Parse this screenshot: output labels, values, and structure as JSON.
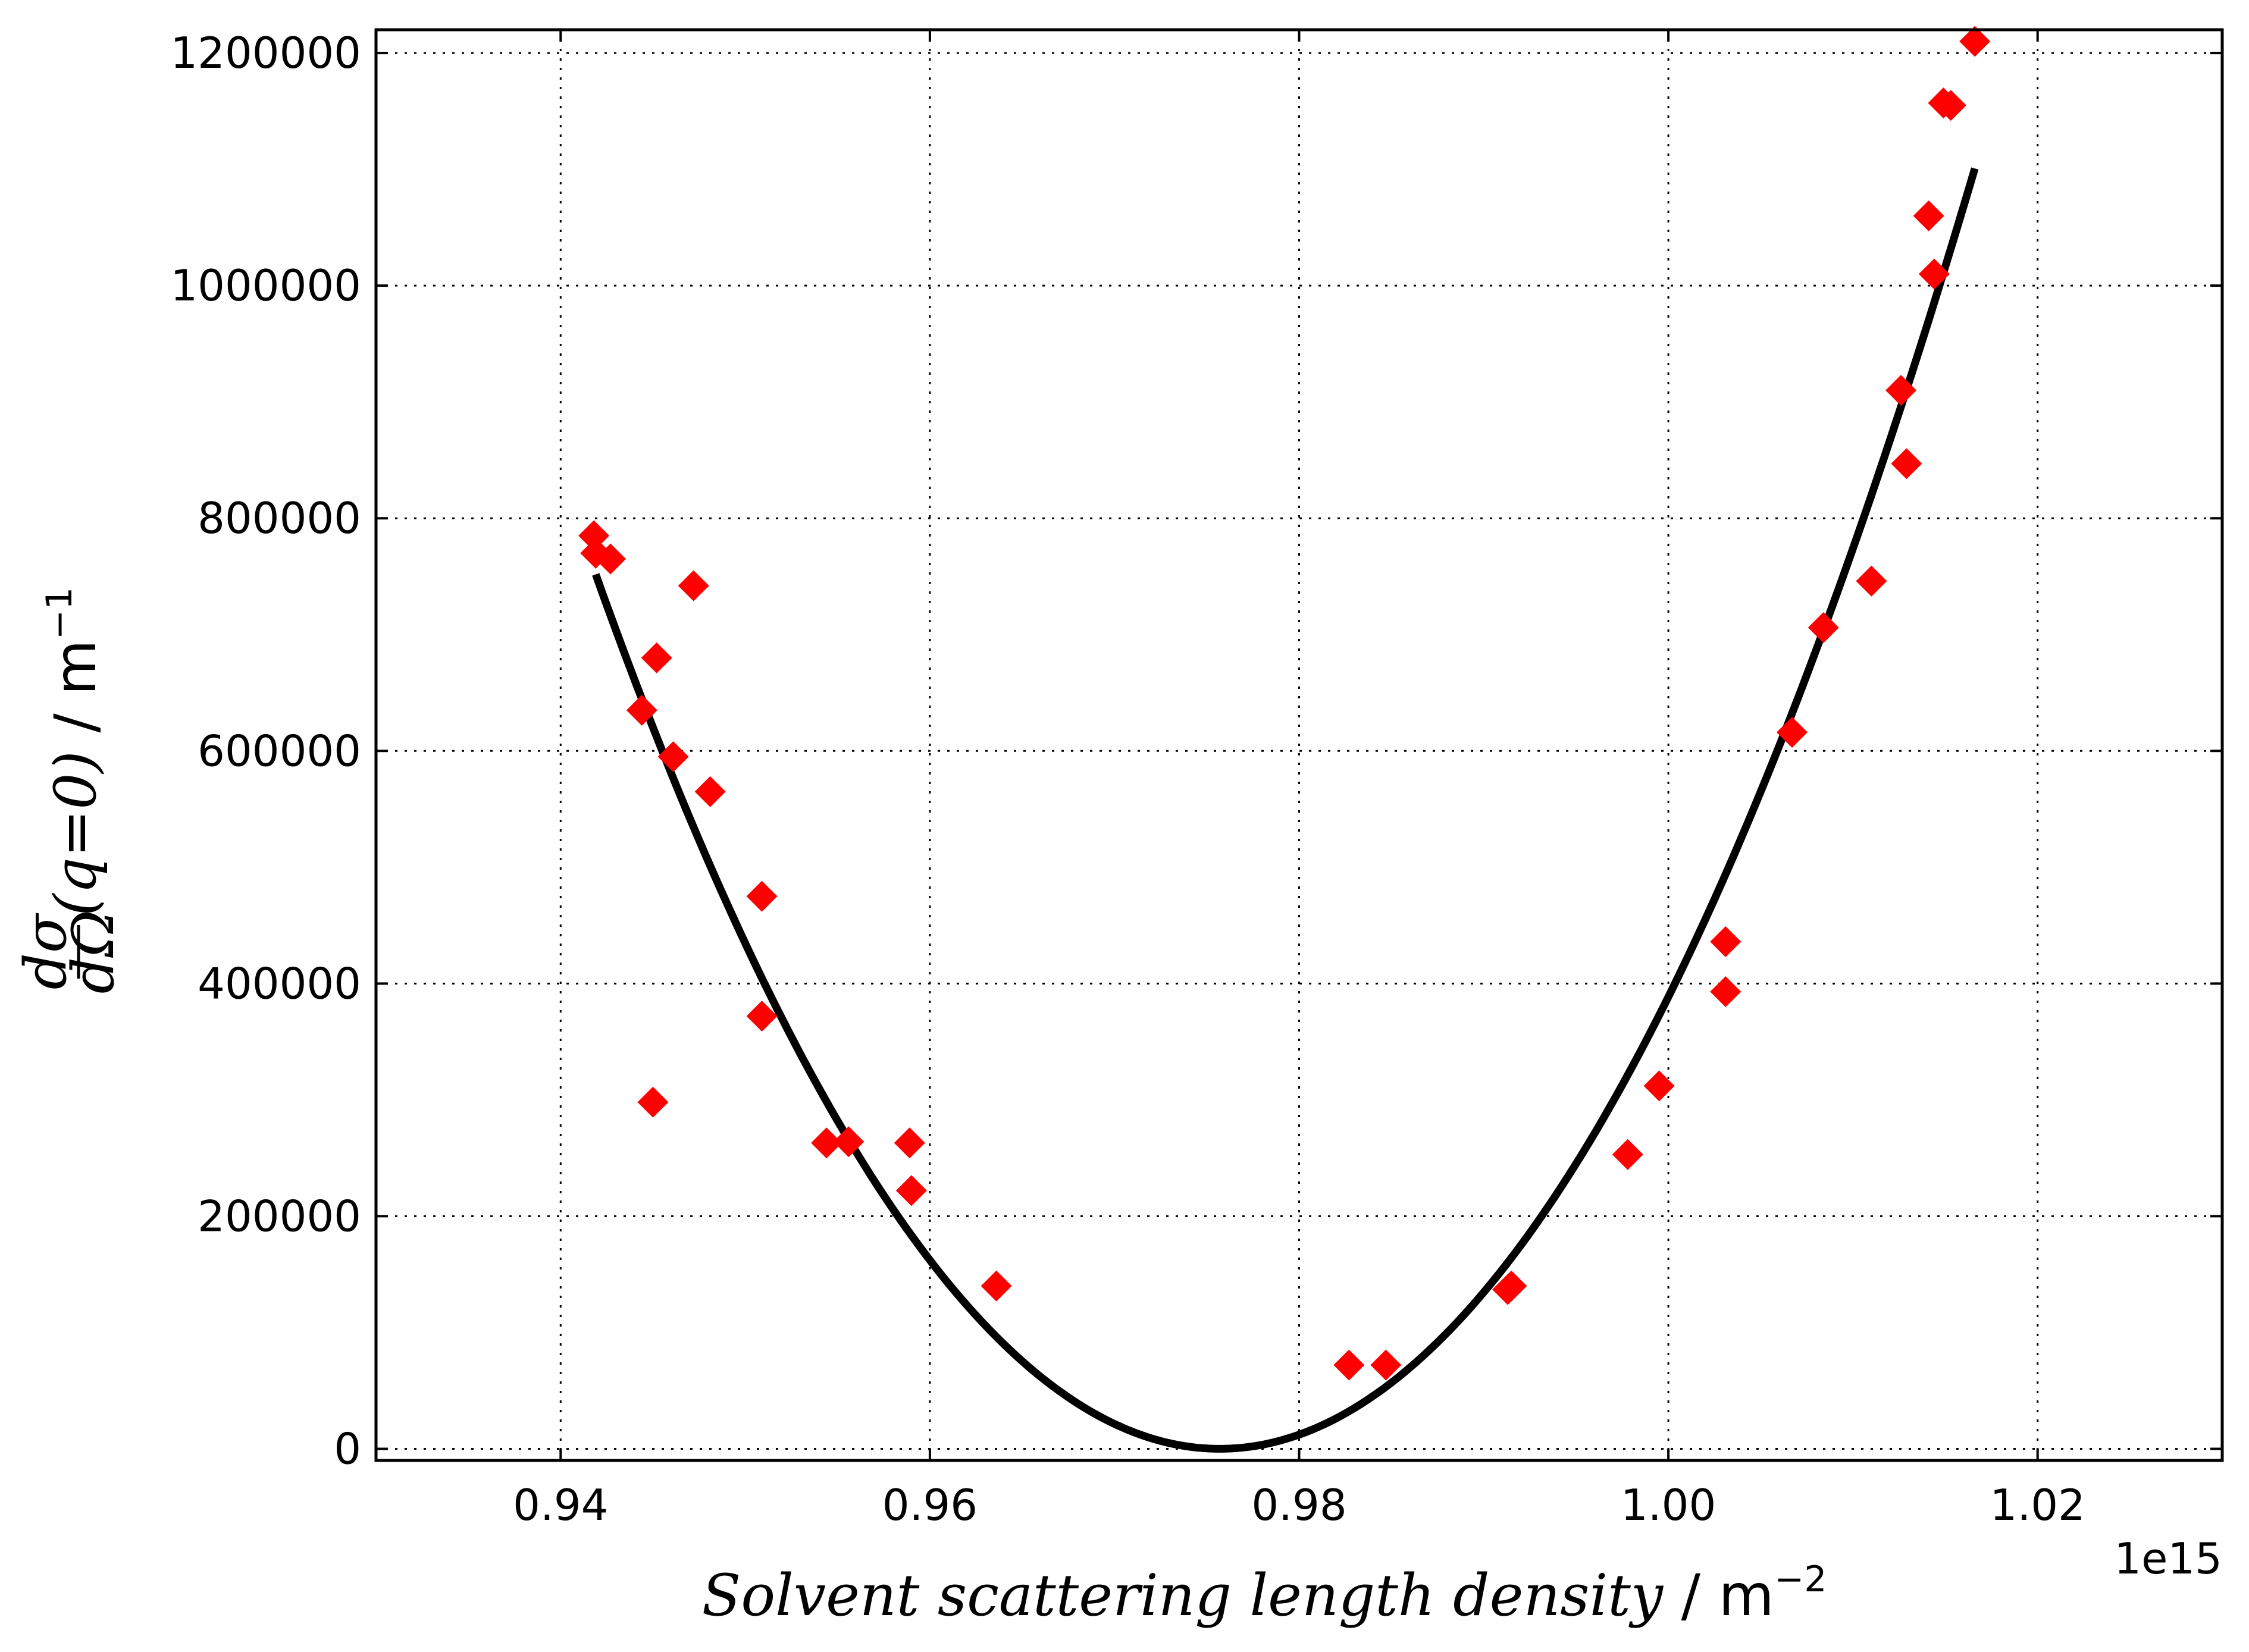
{
  "chart_data": {
    "type": "scatter",
    "xlabel_text": "Solvent scattering length density",
    "xlabel_unit": "/ m",
    "xlabel_exp": "−2",
    "ylabel_num": "dσ",
    "ylabel_den": "dΩ",
    "ylabel_text": "(q=0)",
    "ylabel_unit": "/ m",
    "ylabel_exp": "−1",
    "x_offset_label": "1e15",
    "xlim": [
      0.93,
      1.03
    ],
    "ylim": [
      -10000,
      1220000
    ],
    "x_ticks": [
      0.94,
      0.96,
      0.98,
      1.0,
      1.02
    ],
    "x_tick_labels": [
      "0.94",
      "0.96",
      "0.98",
      "1.00",
      "1.02"
    ],
    "y_ticks": [
      0,
      200000,
      400000,
      600000,
      800000,
      1000000,
      1200000
    ],
    "y_tick_labels": [
      "0",
      "200000",
      "400000",
      "600000",
      "800000",
      "1000000",
      "1200000"
    ],
    "grid": true,
    "series": [
      {
        "type": "scatter",
        "marker": "diamond",
        "color": "#ff0000",
        "x": [
          0.9418,
          0.9419,
          0.9427,
          0.9444,
          0.9452,
          0.945,
          0.9461,
          0.9472,
          0.9481,
          0.9509,
          0.9509,
          0.9544,
          0.9556,
          0.9589,
          0.959,
          0.9636,
          0.9827,
          0.9847,
          0.9913,
          0.9915,
          0.9978,
          0.9995,
          1.0031,
          1.0031,
          1.0067,
          1.0084,
          1.011,
          1.0126,
          1.0129,
          1.0141,
          1.0144,
          1.0149,
          1.0153,
          1.0166
        ],
        "y": [
          785000,
          770000,
          765000,
          635000,
          680000,
          298000,
          595000,
          742000,
          565000,
          475000,
          372000,
          263000,
          264000,
          263000,
          222000,
          140000,
          72000,
          72000,
          137000,
          140000,
          253000,
          312000,
          436000,
          393000,
          616000,
          706000,
          746000,
          910000,
          847000,
          1060000,
          1010000,
          1157000,
          1155000,
          1210000
        ]
      },
      {
        "type": "line",
        "color": "#000000",
        "fit": "quadratic",
        "vertex_x": 0.9757,
        "vertex_y": 0,
        "curvature": 658000000,
        "x_range": [
          0.9419,
          1.0166
        ]
      }
    ]
  }
}
